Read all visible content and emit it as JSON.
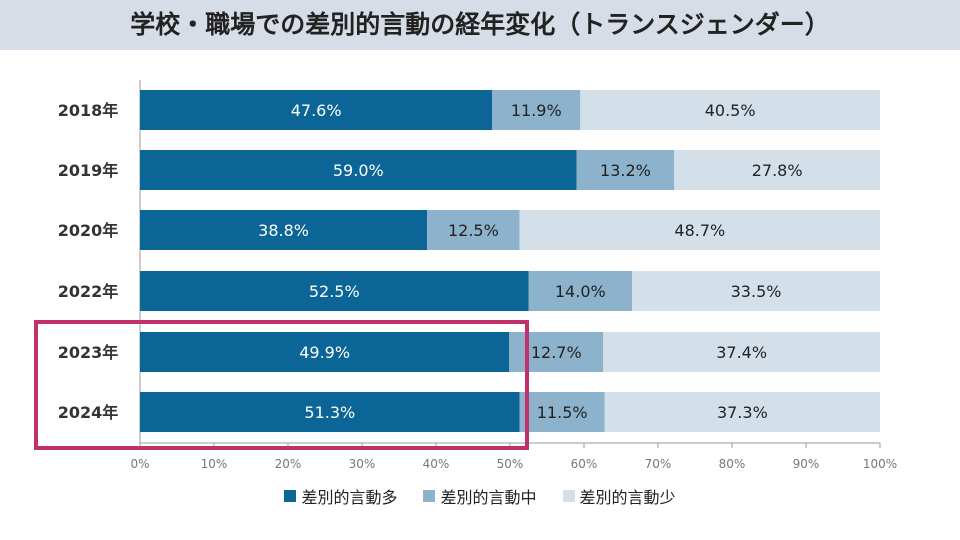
{
  "title": "学校・職場での差別的言動の経年変化（トランスジェンダー）",
  "chart_data": {
    "type": "bar",
    "orientation": "horizontal",
    "stacked": true,
    "normalized": true,
    "title": "学校・職場での差別的言動の経年変化（トランスジェンダー）",
    "categories": [
      "2018年",
      "2019年",
      "2020年",
      "2022年",
      "2023年",
      "2024年"
    ],
    "series": [
      {
        "name": "差別的言動多",
        "color": "#0b6597",
        "values": [
          47.6,
          59.0,
          38.8,
          52.5,
          49.9,
          51.3
        ],
        "labels": [
          "47.6%",
          "59.0%",
          "38.8%",
          "52.5%",
          "49.9%",
          "51.3%"
        ]
      },
      {
        "name": "差別的言動中",
        "color": "#8db2cb",
        "values": [
          11.9,
          13.2,
          12.5,
          14.0,
          12.7,
          11.5
        ],
        "labels": [
          "11.9%",
          "13.2%",
          "12.5%",
          "14.0%",
          "12.7%",
          "11.5%"
        ]
      },
      {
        "name": "差別的言動少",
        "color": "#d3e0ea",
        "values": [
          40.5,
          27.8,
          48.7,
          33.5,
          37.4,
          37.3
        ],
        "labels": [
          "40.5%",
          "27.8%",
          "48.7%",
          "33.5%",
          "37.4%",
          "37.3%"
        ]
      }
    ],
    "xlim": [
      0,
      100
    ],
    "xticks": [
      "0%",
      "10%",
      "20%",
      "30%",
      "40%",
      "50%",
      "60%",
      "70%",
      "80%",
      "90%",
      "100%"
    ],
    "xlabel": "",
    "ylabel": "",
    "grid": false,
    "legend": "bottom",
    "highlight": {
      "categories": [
        "2023年",
        "2024年"
      ],
      "color": "#c0306a"
    }
  }
}
